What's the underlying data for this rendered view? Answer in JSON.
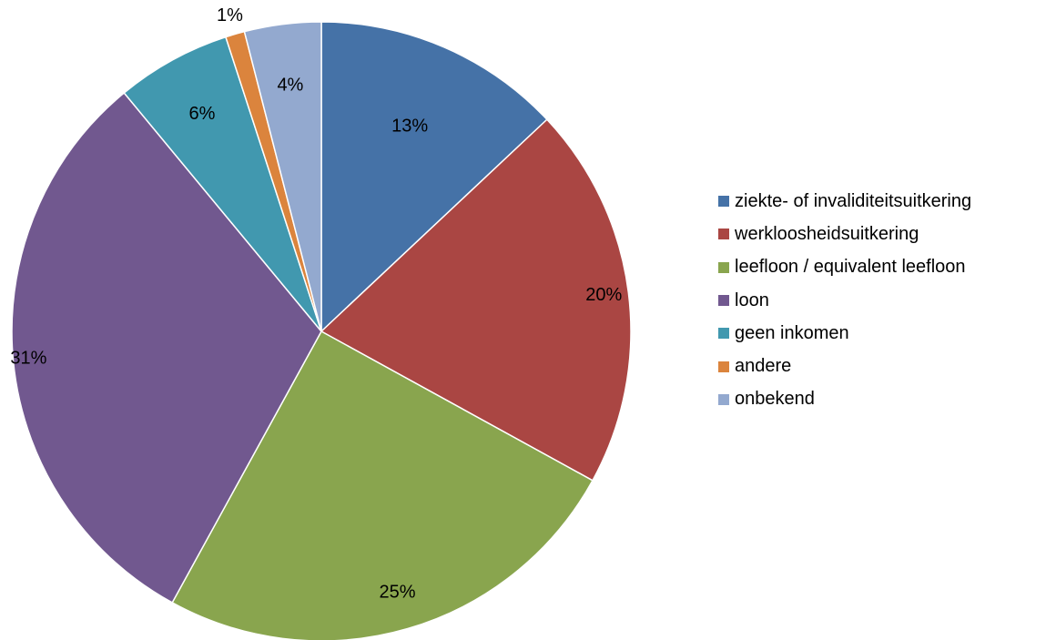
{
  "chart_data": {
    "type": "pie",
    "title": "",
    "slices": [
      {
        "name": "ziekte- of invaliditeitsuitkering",
        "value": 13,
        "label": "13%",
        "color": "#4572A7"
      },
      {
        "name": "werkloosheidsuitkering",
        "value": 20,
        "label": "20%",
        "color": "#AA4643"
      },
      {
        "name": "leefloon / equivalent leefloon",
        "value": 25,
        "label": "25%",
        "color": "#89A54E"
      },
      {
        "name": "loon",
        "value": 31,
        "label": "31%",
        "color": "#71588F"
      },
      {
        "name": "geen inkomen",
        "value": 6,
        "label": "6%",
        "color": "#4198AF"
      },
      {
        "name": "andere",
        "value": 1,
        "label": "1%",
        "color": "#DB843D"
      },
      {
        "name": "onbekend",
        "value": 4,
        "label": "4%",
        "color": "#93A9CF"
      }
    ],
    "start_angle": "12 o'clock",
    "direction": "clockwise",
    "legend_position": "right"
  }
}
